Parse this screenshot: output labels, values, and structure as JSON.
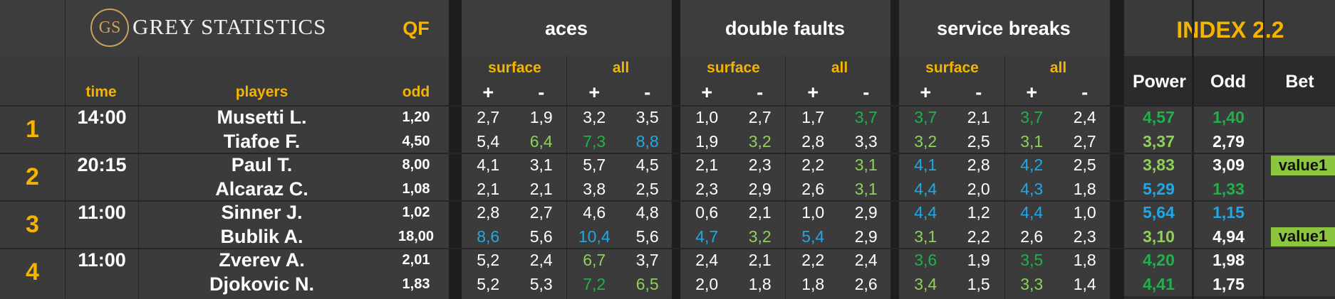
{
  "brand": {
    "logo_text": "GS",
    "name": "GREY STATISTICS"
  },
  "round": "QF",
  "groups": {
    "aces": "aces",
    "double_faults": "double faults",
    "service_breaks": "service breaks"
  },
  "index_title": "INDEX 2.2",
  "columns": {
    "time": "time",
    "players": "players",
    "odd": "odd",
    "surface": "surface",
    "all": "all",
    "plus": "+",
    "minus": "-",
    "power": "Power",
    "odd2": "Odd",
    "bet": "Bet"
  },
  "colors": {
    "yellow": "#f4b400",
    "green": "#1fb14a",
    "light_green": "#8fcf5a",
    "blue": "#20a8e6",
    "badge": "#8cc63f"
  },
  "matches": [
    {
      "rank": "1",
      "time": "14:00",
      "players": [
        {
          "name": "Musetti L.",
          "odd": "1,20",
          "stats": [
            [
              "2,7",
              "w"
            ],
            [
              "1,9",
              "w"
            ],
            [
              "3,2",
              "w"
            ],
            [
              "3,5",
              "w"
            ],
            [
              "1,0",
              "w"
            ],
            [
              "2,7",
              "w"
            ],
            [
              "1,7",
              "w"
            ],
            [
              "3,7",
              "g"
            ],
            [
              "3,7",
              "g"
            ],
            [
              "2,1",
              "w"
            ],
            [
              "3,7",
              "g"
            ],
            [
              "2,4",
              "w"
            ]
          ],
          "power": [
            "4,57",
            "g"
          ],
          "odd2": [
            "1,40",
            "g"
          ],
          "bet": ""
        },
        {
          "name": "Tiafoe F.",
          "odd": "4,50",
          "stats": [
            [
              "5,4",
              "w"
            ],
            [
              "6,4",
              "l"
            ],
            [
              "7,3",
              "g"
            ],
            [
              "8,8",
              "b"
            ],
            [
              "1,9",
              "w"
            ],
            [
              "3,2",
              "l"
            ],
            [
              "2,8",
              "w"
            ],
            [
              "3,3",
              "w"
            ],
            [
              "3,2",
              "l"
            ],
            [
              "2,5",
              "w"
            ],
            [
              "3,1",
              "l"
            ],
            [
              "2,7",
              "w"
            ]
          ],
          "power": [
            "3,37",
            "l"
          ],
          "odd2": [
            "2,79",
            "w"
          ],
          "bet": ""
        }
      ]
    },
    {
      "rank": "2",
      "time": "20:15",
      "players": [
        {
          "name": "Paul T.",
          "odd": "8,00",
          "stats": [
            [
              "4,1",
              "w"
            ],
            [
              "3,1",
              "w"
            ],
            [
              "5,7",
              "w"
            ],
            [
              "4,5",
              "w"
            ],
            [
              "2,1",
              "w"
            ],
            [
              "2,3",
              "w"
            ],
            [
              "2,2",
              "w"
            ],
            [
              "3,1",
              "l"
            ],
            [
              "4,1",
              "b"
            ],
            [
              "2,8",
              "w"
            ],
            [
              "4,2",
              "b"
            ],
            [
              "2,5",
              "w"
            ]
          ],
          "power": [
            "3,83",
            "l"
          ],
          "odd2": [
            "3,09",
            "w"
          ],
          "bet": "value1"
        },
        {
          "name": "Alcaraz C.",
          "odd": "1,08",
          "stats": [
            [
              "2,1",
              "w"
            ],
            [
              "2,1",
              "w"
            ],
            [
              "3,8",
              "w"
            ],
            [
              "2,5",
              "w"
            ],
            [
              "2,3",
              "w"
            ],
            [
              "2,9",
              "w"
            ],
            [
              "2,6",
              "w"
            ],
            [
              "3,1",
              "l"
            ],
            [
              "4,4",
              "b"
            ],
            [
              "2,0",
              "w"
            ],
            [
              "4,3",
              "b"
            ],
            [
              "1,8",
              "w"
            ]
          ],
          "power": [
            "5,29",
            "b"
          ],
          "odd2": [
            "1,33",
            "g"
          ],
          "bet": ""
        }
      ]
    },
    {
      "rank": "3",
      "time": "11:00",
      "players": [
        {
          "name": "Sinner J.",
          "odd": "1,02",
          "stats": [
            [
              "2,8",
              "w"
            ],
            [
              "2,7",
              "w"
            ],
            [
              "4,6",
              "w"
            ],
            [
              "4,8",
              "w"
            ],
            [
              "0,6",
              "w"
            ],
            [
              "2,1",
              "w"
            ],
            [
              "1,0",
              "w"
            ],
            [
              "2,9",
              "w"
            ],
            [
              "4,4",
              "b"
            ],
            [
              "1,2",
              "w"
            ],
            [
              "4,4",
              "b"
            ],
            [
              "1,0",
              "w"
            ]
          ],
          "power": [
            "5,64",
            "b"
          ],
          "odd2": [
            "1,15",
            "b"
          ],
          "bet": ""
        },
        {
          "name": "Bublik A.",
          "odd": "18,00",
          "stats": [
            [
              "8,6",
              "b"
            ],
            [
              "5,6",
              "w"
            ],
            [
              "10,4",
              "b"
            ],
            [
              "5,6",
              "w"
            ],
            [
              "4,7",
              "b"
            ],
            [
              "3,2",
              "l"
            ],
            [
              "5,4",
              "b"
            ],
            [
              "2,9",
              "w"
            ],
            [
              "3,1",
              "l"
            ],
            [
              "2,2",
              "w"
            ],
            [
              "2,6",
              "w"
            ],
            [
              "2,3",
              "w"
            ]
          ],
          "power": [
            "3,10",
            "l"
          ],
          "odd2": [
            "4,94",
            "w"
          ],
          "bet": "value1"
        }
      ]
    },
    {
      "rank": "4",
      "time": "11:00",
      "players": [
        {
          "name": "Zverev A.",
          "odd": "2,01",
          "stats": [
            [
              "5,2",
              "w"
            ],
            [
              "2,4",
              "w"
            ],
            [
              "6,7",
              "l"
            ],
            [
              "3,7",
              "w"
            ],
            [
              "2,4",
              "w"
            ],
            [
              "2,1",
              "w"
            ],
            [
              "2,2",
              "w"
            ],
            [
              "2,4",
              "w"
            ],
            [
              "3,6",
              "g"
            ],
            [
              "1,9",
              "w"
            ],
            [
              "3,5",
              "g"
            ],
            [
              "1,8",
              "w"
            ]
          ],
          "power": [
            "4,20",
            "g"
          ],
          "odd2": [
            "1,98",
            "w"
          ],
          "bet": ""
        },
        {
          "name": "Djokovic N.",
          "odd": "1,83",
          "stats": [
            [
              "5,2",
              "w"
            ],
            [
              "5,3",
              "w"
            ],
            [
              "7,2",
              "g"
            ],
            [
              "6,5",
              "l"
            ],
            [
              "2,0",
              "w"
            ],
            [
              "1,8",
              "w"
            ],
            [
              "1,8",
              "w"
            ],
            [
              "2,6",
              "w"
            ],
            [
              "3,4",
              "l"
            ],
            [
              "1,5",
              "w"
            ],
            [
              "3,3",
              "l"
            ],
            [
              "1,4",
              "w"
            ]
          ],
          "power": [
            "4,41",
            "g"
          ],
          "odd2": [
            "1,75",
            "w"
          ],
          "bet": ""
        }
      ]
    }
  ]
}
